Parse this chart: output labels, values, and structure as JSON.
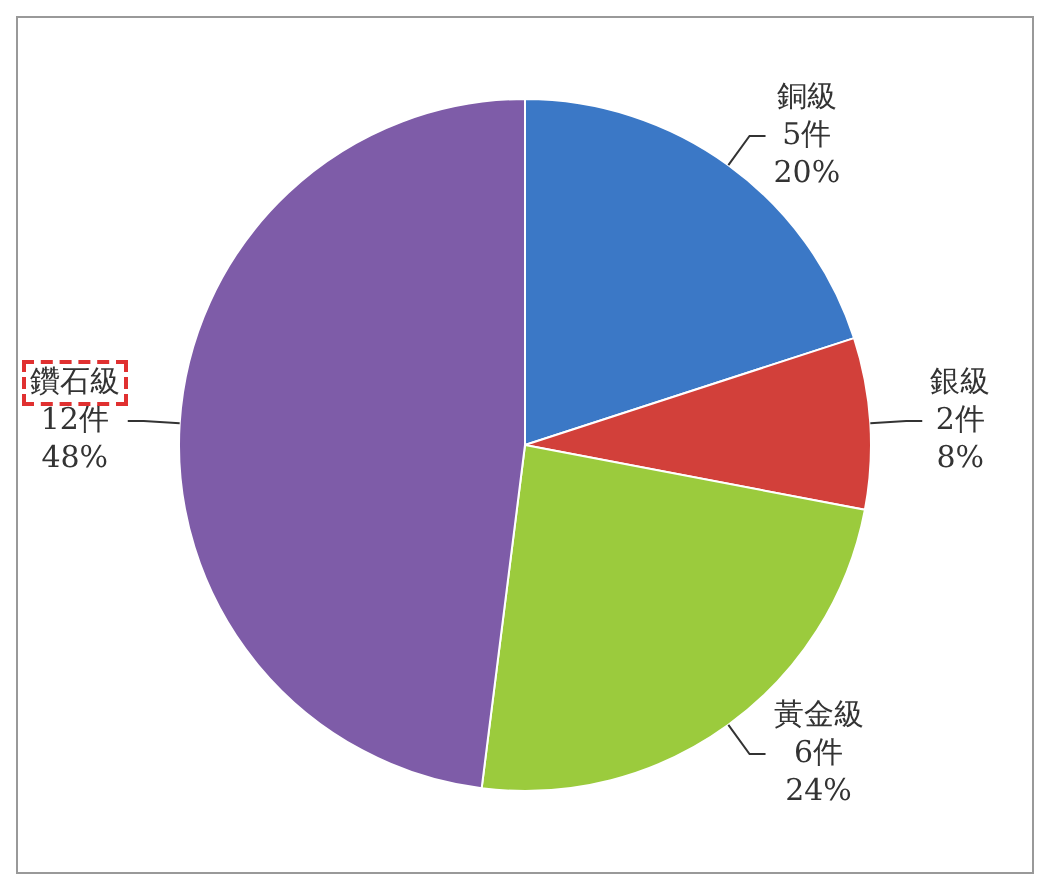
{
  "chart_data": {
    "type": "pie",
    "categories": [
      "銅級",
      "銀級",
      "黃金級",
      "鑽石級"
    ],
    "values": [
      5,
      2,
      6,
      12
    ],
    "colors": [
      "#3b78c6",
      "#d2403a",
      "#9bcb3d",
      "#7e5ca8"
    ],
    "value_labels": [
      "5件\n20%",
      "2件\n8%",
      "6件\n24%",
      "12件\n48%"
    ],
    "legend": false
  }
}
